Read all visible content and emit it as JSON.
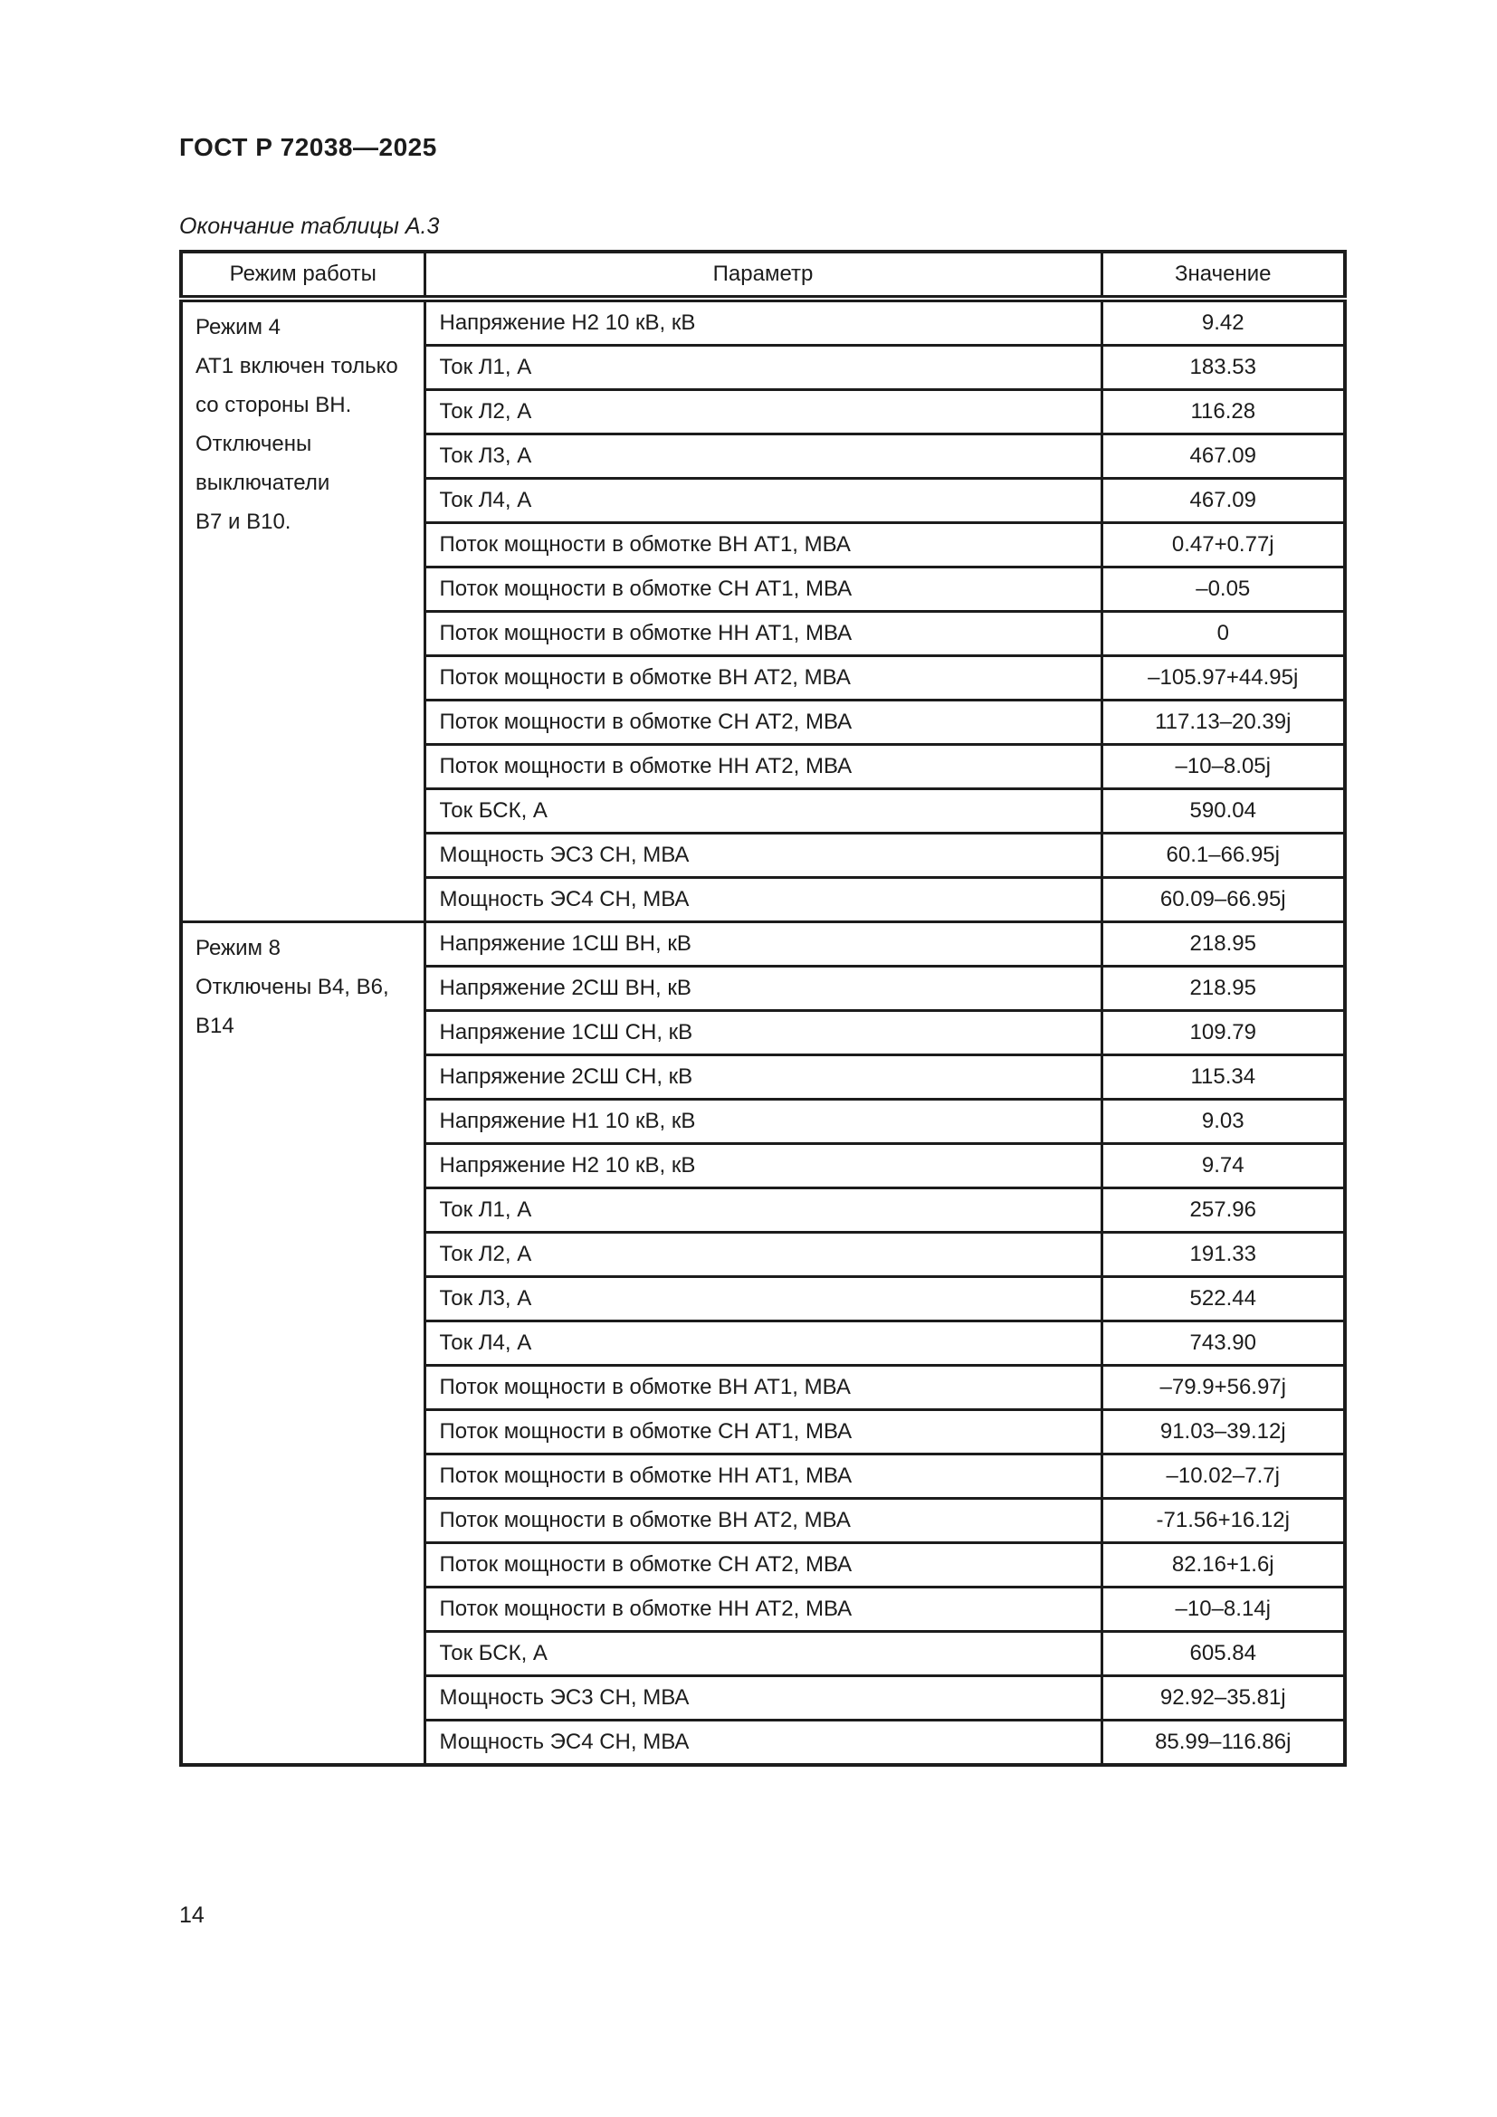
{
  "header": {
    "doc_code": "ГОСТ Р 72038—2025"
  },
  "table": {
    "caption": "Окончание таблицы А.3",
    "headers": [
      "Режим работы",
      "Параметр",
      "Значение"
    ],
    "groups": [
      {
        "mode_lines": [
          "Режим 4",
          "АТ1 включен только",
          "со стороны ВН.",
          "Отключены",
          "выключатели",
          "В7 и В10."
        ],
        "rows": [
          {
            "param": "Напряжение Н2 10 кВ, кВ",
            "value": "9.42"
          },
          {
            "param": "Ток Л1, А",
            "value": "183.53"
          },
          {
            "param": "Ток Л2, А",
            "value": "116.28"
          },
          {
            "param": "Ток Л3, А",
            "value": "467.09"
          },
          {
            "param": "Ток Л4, А",
            "value": "467.09"
          },
          {
            "param": "Поток мощности в обмотке ВН АТ1, МВА",
            "value": "0.47+0.77j"
          },
          {
            "param": "Поток мощности в обмотке СН АТ1, МВА",
            "value": "–0.05"
          },
          {
            "param": "Поток мощности в обмотке НН АТ1, МВА",
            "value": "0"
          },
          {
            "param": "Поток мощности в обмотке ВН АТ2, МВА",
            "value": "–105.97+44.95j"
          },
          {
            "param": "Поток мощности в обмотке СН АТ2, МВА",
            "value": "117.13–20.39j"
          },
          {
            "param": "Поток мощности в обмотке НН АТ2, МВА",
            "value": "–10–8.05j"
          },
          {
            "param": "Ток БСК, А",
            "value": "590.04"
          },
          {
            "param": "Мощность ЭС3 СН, МВА",
            "value": "60.1–66.95j"
          },
          {
            "param": "Мощность ЭС4 СН, МВА",
            "value": "60.09–66.95j"
          }
        ]
      },
      {
        "mode_lines": [
          "Режим 8",
          "Отключены В4, В6,",
          "В14"
        ],
        "rows": [
          {
            "param": "Напряжение 1СШ ВН, кВ",
            "value": "218.95"
          },
          {
            "param": "Напряжение 2СШ ВН, кВ",
            "value": "218.95"
          },
          {
            "param": "Напряжение 1СШ СН, кВ",
            "value": "109.79"
          },
          {
            "param": "Напряжение 2СШ СН, кВ",
            "value": "115.34"
          },
          {
            "param": "Напряжение Н1 10 кВ, кВ",
            "value": "9.03"
          },
          {
            "param": "Напряжение Н2 10 кВ, кВ",
            "value": "9.74"
          },
          {
            "param": "Ток Л1, А",
            "value": "257.96"
          },
          {
            "param": "Ток Л2, А",
            "value": "191.33"
          },
          {
            "param": "Ток Л3, А",
            "value": "522.44"
          },
          {
            "param": "Ток Л4, А",
            "value": "743.90"
          },
          {
            "param": "Поток мощности в обмотке ВН АТ1, МВА",
            "value": "–79.9+56.97j"
          },
          {
            "param": "Поток мощности в обмотке СН АТ1, МВА",
            "value": "91.03–39.12j"
          },
          {
            "param": "Поток мощности в обмотке НН АТ1, МВА",
            "value": "–10.02–7.7j"
          },
          {
            "param": "Поток мощности в обмотке ВН АТ2, МВА",
            "value": "-71.56+16.12j"
          },
          {
            "param": "Поток мощности в обмотке СН АТ2, МВА",
            "value": "82.16+1.6j"
          },
          {
            "param": "Поток мощности в обмотке НН АТ2, МВА",
            "value": "–10–8.14j"
          },
          {
            "param": "Ток БСК, А",
            "value": "605.84"
          },
          {
            "param": "Мощность ЭС3 СН, МВА",
            "value": "92.92–35.81j"
          },
          {
            "param": "Мощность ЭС4 СН, МВА",
            "value": "85.99–116.86j"
          }
        ]
      }
    ]
  },
  "footer": {
    "page_number": "14"
  },
  "colors": {
    "text": "#1c1c1c",
    "border": "#1c1c1c",
    "background": "#ffffff"
  }
}
